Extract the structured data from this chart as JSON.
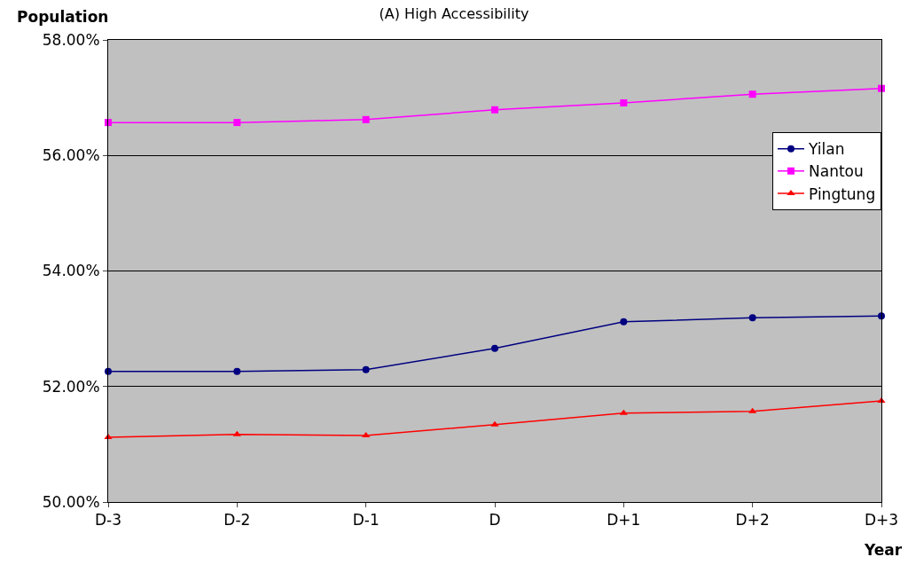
{
  "chart_data": {
    "type": "line",
    "title": "(A) High Accessibility",
    "xlabel": "Year",
    "ylabel": "Population",
    "categories": [
      "D-3",
      "D-2",
      "D-1",
      "D",
      "D+1",
      "D+2",
      "D+3"
    ],
    "series": [
      {
        "name": "Yilan",
        "color": "#000080",
        "marker": "circle",
        "values": [
          52.26,
          52.26,
          52.29,
          52.66,
          53.12,
          53.19,
          53.22
        ]
      },
      {
        "name": "Nantou",
        "color": "#ff00ff",
        "marker": "square",
        "values": [
          56.57,
          56.57,
          56.62,
          56.79,
          56.91,
          57.06,
          57.16
        ]
      },
      {
        "name": "Pingtung",
        "color": "#ff0000",
        "marker": "triangle",
        "values": [
          51.12,
          51.17,
          51.15,
          51.34,
          51.54,
          51.57,
          51.75
        ]
      }
    ],
    "ylim": [
      50,
      58
    ],
    "yticks": [
      {
        "value": 50,
        "label": "50.00%"
      },
      {
        "value": 52,
        "label": "52.00%"
      },
      {
        "value": 54,
        "label": "54.00%"
      },
      {
        "value": 56,
        "label": "56.00%"
      },
      {
        "value": 58,
        "label": "58.00%"
      }
    ],
    "grid": "y",
    "legend": "top right",
    "line_style": "solid"
  }
}
